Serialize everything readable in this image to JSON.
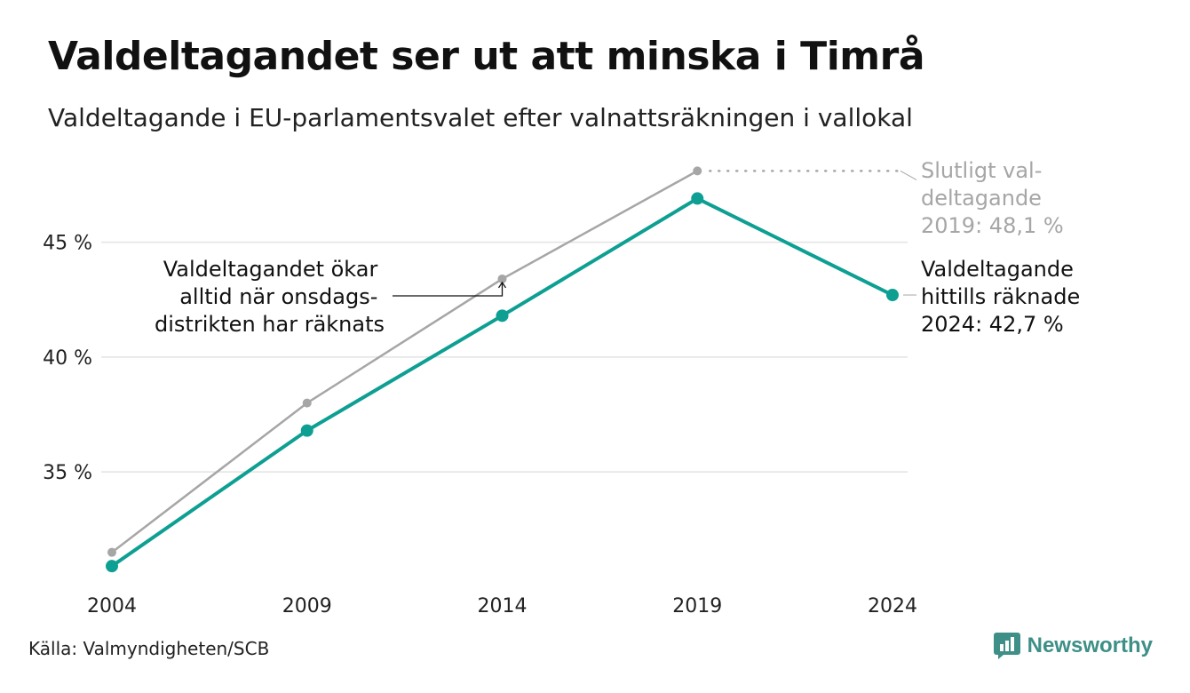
{
  "title": "Valdeltagandet ser ut att minska i Timrå",
  "subtitle": "Valdeltagande i EU-parlamentsvalet efter valnattsräkningen i vallokal",
  "source": "Källa: Valmyndigheten/SCB",
  "brand": {
    "name": "Newsworthy",
    "icon": "newsworthy-logo-icon",
    "color": "#3d8f87"
  },
  "chart_data": {
    "type": "line",
    "x": [
      2004,
      2009,
      2014,
      2019,
      2024
    ],
    "x_tick_labels": [
      "2004",
      "2009",
      "2014",
      "2019",
      "2024"
    ],
    "ylim": [
      30,
      49
    ],
    "y_ticks": [
      35,
      40,
      45
    ],
    "y_tick_labels": [
      "35 %",
      "40 %",
      "45 %"
    ],
    "grid": true,
    "series": [
      {
        "key": "final",
        "color": "#a6a6a6",
        "values": [
          31.5,
          38.0,
          43.4,
          48.1,
          null
        ]
      },
      {
        "key": "counted",
        "color": "#0e9f93",
        "values": [
          30.9,
          36.8,
          41.8,
          46.9,
          42.7
        ]
      }
    ],
    "annotations": {
      "final": [
        "Slutligt val-",
        "deltagande",
        "2019: 48,1 %"
      ],
      "counted": [
        "Valdeltagande",
        "hittills räknade",
        "2024: 42,7 %"
      ],
      "wednesday": [
        "Valdeltagandet ökar",
        "alltid när onsdags-",
        "distrikten har räknats"
      ]
    }
  }
}
